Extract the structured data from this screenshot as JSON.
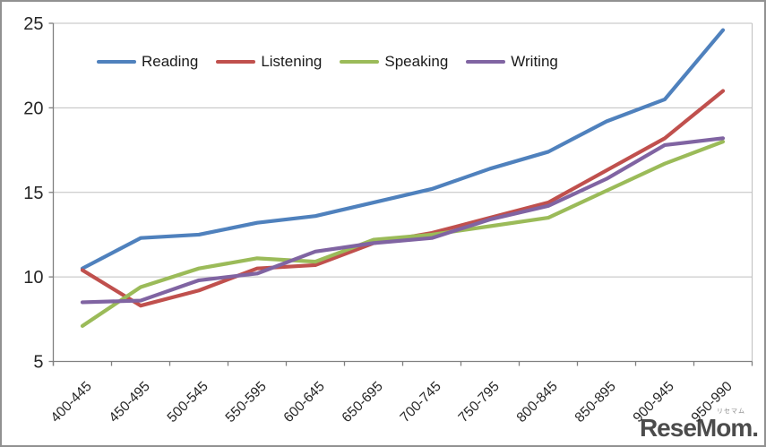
{
  "chart_data": {
    "type": "line",
    "title": "",
    "xlabel": "",
    "ylabel": "",
    "categories": [
      "400-445",
      "450-495",
      "500-545",
      "550-595",
      "600-645",
      "650-695",
      "700-745",
      "750-795",
      "800-845",
      "850-895",
      "900-945",
      "950-990"
    ],
    "series": [
      {
        "name": "Reading",
        "color": "#4F81BD",
        "values": [
          10.5,
          12.3,
          12.5,
          13.2,
          13.6,
          14.4,
          15.2,
          16.4,
          17.4,
          19.2,
          20.5,
          24.6
        ]
      },
      {
        "name": "Listening",
        "color": "#C0504D",
        "values": [
          10.4,
          8.3,
          9.2,
          10.5,
          10.7,
          12.0,
          12.6,
          13.5,
          14.4,
          16.3,
          18.2,
          21.0
        ]
      },
      {
        "name": "Speaking",
        "color": "#9BBB59",
        "values": [
          7.1,
          9.4,
          10.5,
          11.1,
          10.9,
          12.2,
          12.5,
          13.0,
          13.5,
          15.1,
          16.7,
          18.0
        ]
      },
      {
        "name": "Writing",
        "color": "#8064A2",
        "values": [
          8.5,
          8.6,
          9.8,
          10.2,
          11.5,
          12.0,
          12.3,
          13.4,
          14.2,
          15.8,
          17.8,
          18.2
        ]
      }
    ],
    "ylim": [
      5,
      25
    ],
    "yticks": [
      5,
      10,
      15,
      20,
      25
    ],
    "grid": "horizontal",
    "legend_position": "top-center",
    "grid_color": "#BFBFBF",
    "axis_color": "#808080",
    "tick_label_color": "#262626"
  },
  "legend": {
    "items": [
      {
        "label": "Reading"
      },
      {
        "label": "Listening"
      },
      {
        "label": "Speaking"
      },
      {
        "label": "Writing"
      }
    ]
  },
  "logo": {
    "small_text": "リセマム",
    "main_text": "ReseMom."
  }
}
